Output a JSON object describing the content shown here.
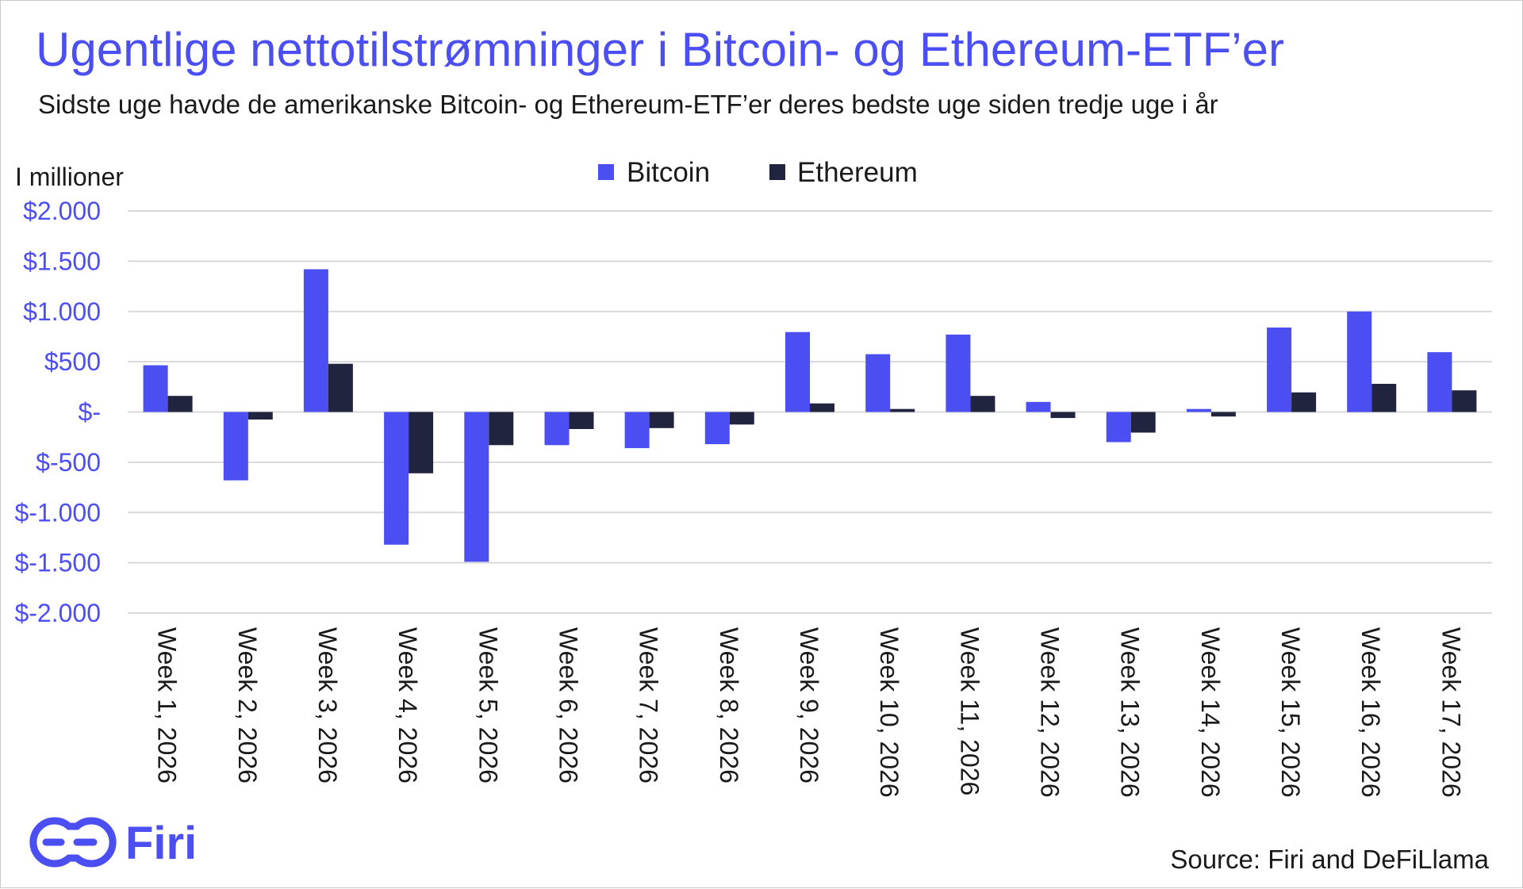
{
  "chart_data": {
    "type": "bar",
    "title": "Ugentlige nettotilstrømninger i Bitcoin- og Ethereum-ETF’er",
    "subtitle": "Sidste uge havde de amerikanske Bitcoin- og Ethereum-ETF’er deres bedste uge siden tredje uge i år",
    "ylabel": "I millioner",
    "xlabel": "",
    "ylim": [
      -2000,
      2000
    ],
    "yticks": [
      2000,
      1500,
      1000,
      500,
      0,
      -500,
      -1000,
      -1500,
      -2000
    ],
    "ytick_labels": [
      "$2.000",
      "$1.500",
      "$1.000",
      "$500",
      "$-",
      "$-500",
      "$-1.000",
      "$-1.500",
      "$-2.000"
    ],
    "grid": true,
    "legend_position": "top-center",
    "categories": [
      "Week 1, 2026",
      "Week 2, 2026",
      "Week 3, 2026",
      "Week 4, 2026",
      "Week 5, 2026",
      "Week 6, 2026",
      "Week 7, 2026",
      "Week 8, 2026",
      "Week 9, 2026",
      "Week 10, 2026",
      "Week 11, 2026",
      "Week 12, 2026",
      "Week 13, 2026",
      "Week 14, 2026",
      "Week 15, 2026",
      "Week 16, 2026",
      "Week 17, 2026"
    ],
    "series": [
      {
        "name": "Bitcoin",
        "color": "#4b4ef0",
        "values": [
          465,
          -680,
          1420,
          -1320,
          -1490,
          -330,
          -360,
          -320,
          795,
          575,
          770,
          100,
          -300,
          30,
          840,
          1000,
          595
        ]
      },
      {
        "name": "Ethereum",
        "color": "#20243f",
        "values": [
          160,
          -75,
          480,
          -610,
          -330,
          -170,
          -160,
          -125,
          85,
          30,
          160,
          -60,
          -205,
          -45,
          195,
          280,
          215
        ]
      }
    ]
  },
  "branding": {
    "logo_text": "Firi",
    "logo_icon": "firi-logo-icon",
    "source": "Source: Firi and DeFiLlama"
  },
  "colors": {
    "accent": "#4b4ef0",
    "dark": "#20243f",
    "grid": "#d9d9d9"
  }
}
